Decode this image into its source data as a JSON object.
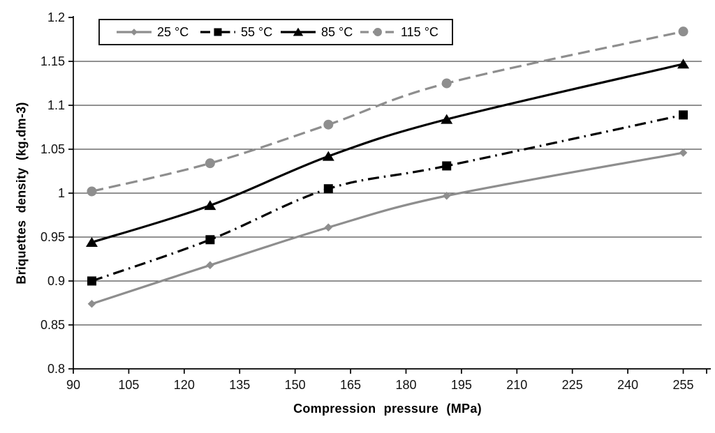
{
  "chart_data": {
    "type": "line",
    "title": "",
    "xlabel": "Compression pressure (MPa)",
    "ylabel": "Briquettes density (kg.dm-3)",
    "x": [
      95,
      127,
      159,
      191,
      255
    ],
    "xlim": [
      90,
      260
    ],
    "ylim": [
      0.8,
      1.2
    ],
    "x_ticks": [
      90,
      105,
      120,
      135,
      150,
      165,
      180,
      195,
      210,
      225,
      240,
      255
    ],
    "y_ticks": [
      0.8,
      0.85,
      0.9,
      0.95,
      1,
      1.05,
      1.1,
      1.15,
      1.2
    ],
    "y_tick_labels": [
      "0.8",
      "0.85",
      "0.9",
      "0.95",
      "1",
      "1.05",
      "1.1",
      "1.15",
      "1.2"
    ],
    "grid": "horizontal-only",
    "legend_position": "top-left-inside",
    "series": [
      {
        "name": "25 °C",
        "color": "#8e8e8e",
        "line_style": "solid",
        "marker": "diamond",
        "values": [
          0.874,
          0.918,
          0.961,
          0.997,
          1.046
        ]
      },
      {
        "name": "55 °C",
        "color": "#000000",
        "line_style": "dash-dot",
        "marker": "square",
        "values": [
          0.9,
          0.947,
          1.005,
          1.031,
          1.089
        ]
      },
      {
        "name": "85 °C",
        "color": "#000000",
        "line_style": "solid",
        "marker": "triangle",
        "values": [
          0.944,
          0.986,
          1.042,
          1.084,
          1.147
        ]
      },
      {
        "name": "115 °C",
        "color": "#8e8e8e",
        "line_style": "dashed",
        "marker": "circle",
        "values": [
          1.002,
          1.034,
          1.078,
          1.125,
          1.184
        ]
      }
    ],
    "colors": {
      "gridline": "#4f4f4f",
      "axis": "#000000",
      "tick_label": "#111111",
      "legend_border": "#000000",
      "legend_background": "#ffffff",
      "series_gray": "#8e8e8e",
      "series_black": "#000000"
    }
  }
}
